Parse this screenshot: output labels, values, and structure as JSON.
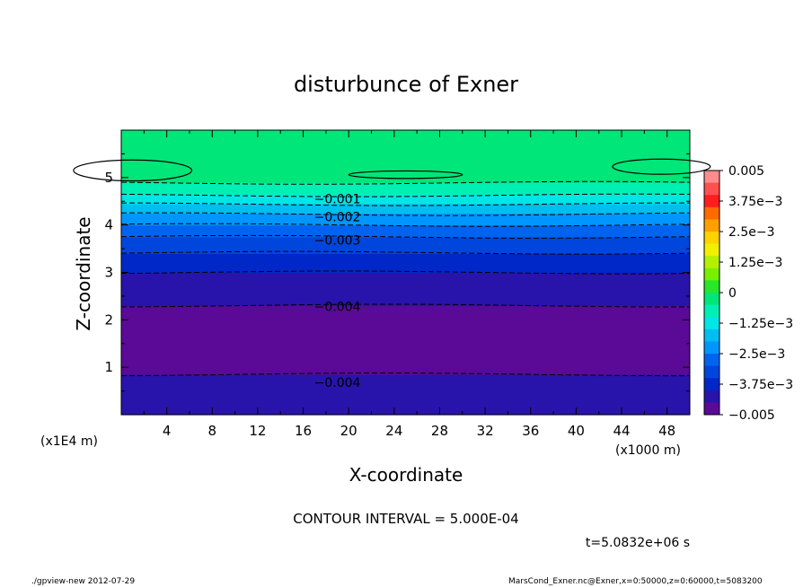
{
  "chart_data": {
    "type": "heatmap",
    "title": "disturbunce of Exner",
    "xlabel": "X-coordinate",
    "ylabel": "Z-coordinate",
    "x_unit_label": "(x1000 m)",
    "y_unit_label": "(x1E4 m)",
    "xlim": [
      0,
      50
    ],
    "ylim": [
      0,
      6
    ],
    "x_ticks": [
      "4",
      "8",
      "12",
      "16",
      "20",
      "24",
      "28",
      "32",
      "36",
      "40",
      "44",
      "48"
    ],
    "y_ticks": [
      "1",
      "2",
      "3",
      "4",
      "5"
    ],
    "z_profile": [
      {
        "z": 0.0,
        "value": -0.004
      },
      {
        "z": 0.3,
        "value": -0.0042
      },
      {
        "z": 0.7,
        "value": -0.0044
      },
      {
        "z": 1.0,
        "value": -0.0046
      },
      {
        "z": 1.7,
        "value": -0.0047
      },
      {
        "z": 2.3,
        "value": -0.0045
      },
      {
        "z": 2.8,
        "value": -0.0042
      },
      {
        "z": 3.2,
        "value": -0.0038
      },
      {
        "z": 3.7,
        "value": -0.0031
      },
      {
        "z": 4.1,
        "value": -0.0023
      },
      {
        "z": 4.4,
        "value": -0.0016
      },
      {
        "z": 4.7,
        "value": -0.0008
      },
      {
        "z": 5.2,
        "value": 0.0
      },
      {
        "z": 6.0,
        "value": 0.0
      }
    ],
    "contour_labels": [
      {
        "text": "-0.001",
        "x": 19,
        "z": 4.55
      },
      {
        "text": "-0.002",
        "x": 19,
        "z": 4.17
      },
      {
        "text": "-0.003",
        "x": 19,
        "z": 3.68
      },
      {
        "text": "-0.004",
        "x": 19,
        "z": 2.28
      },
      {
        "text": "-0.004",
        "x": 19,
        "z": 0.68
      }
    ],
    "contour_interval": "CONTOUR INTERVAL = 5.000E-04",
    "time_label": "t=5.0832e+06 s",
    "colorbar": {
      "range": [
        -0.005,
        0.005
      ],
      "tick_labels": [
        "0.005",
        "3.75e-3",
        "2.5e-3",
        "1.25e-3",
        "0",
        "-1.25e-3",
        "-2.5e-3",
        "-3.75e-3",
        "-0.005"
      ],
      "colors": [
        "#ff8c8c",
        "#ff5050",
        "#ff1e1e",
        "#ff6a00",
        "#ffa000",
        "#ffd200",
        "#f0f000",
        "#b4f000",
        "#78f000",
        "#28e628",
        "#00e678",
        "#00f0b4",
        "#00e6e6",
        "#00bef0",
        "#0096ff",
        "#0064f0",
        "#0046dc",
        "#0028c8",
        "#2814aa",
        "#5a0a96"
      ]
    }
  },
  "footer": {
    "left": "./gpview-new  2012-07-29",
    "right": "MarsCond_Exner.nc@Exner,x=0:50000,z=0:60000,t=5083200"
  }
}
